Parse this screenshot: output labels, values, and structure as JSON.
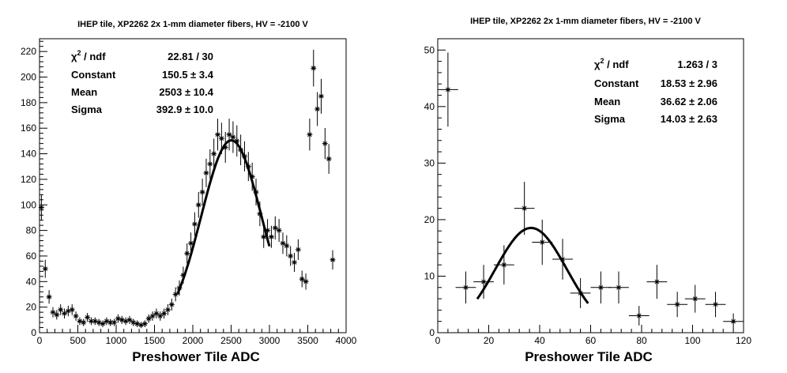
{
  "chart_data": [
    {
      "type": "scatter",
      "title": "IHEP tile, XP2262 2x 1-mm diameter fibers, HV = -2100 V",
      "xlabel": "Preshower Tile ADC",
      "ylabel": "",
      "xlim": [
        0,
        4000
      ],
      "ylim": [
        0,
        230
      ],
      "xticks": [
        "0",
        "500",
        "1000",
        "1500",
        "2000",
        "2500",
        "3000",
        "3500",
        "4000"
      ],
      "yticks": [
        "0",
        "20",
        "40",
        "60",
        "80",
        "100",
        "120",
        "140",
        "160",
        "180",
        "200",
        "220"
      ],
      "stats": [
        {
          "label": "χ² / ndf",
          "value": "22.81 / 30"
        },
        {
          "label": "Constant",
          "value": "150.5 ± 3.4"
        },
        {
          "label": "Mean",
          "value": "2503 ± 10.4"
        },
        {
          "label": "Sigma",
          "value": "392.9 ± 10.0"
        }
      ],
      "fit": {
        "constant": 150.5,
        "mean": 2503,
        "sigma": 392.9,
        "range": [
          1800,
          3000
        ]
      },
      "points": [
        [
          25,
          98
        ],
        [
          75,
          50
        ],
        [
          125,
          28
        ],
        [
          175,
          16
        ],
        [
          225,
          14
        ],
        [
          275,
          18
        ],
        [
          325,
          15
        ],
        [
          375,
          17
        ],
        [
          425,
          18
        ],
        [
          475,
          13
        ],
        [
          525,
          9
        ],
        [
          575,
          8
        ],
        [
          625,
          12
        ],
        [
          675,
          9
        ],
        [
          725,
          9
        ],
        [
          775,
          8
        ],
        [
          825,
          7
        ],
        [
          875,
          9
        ],
        [
          925,
          8
        ],
        [
          975,
          8
        ],
        [
          1025,
          11
        ],
        [
          1075,
          10
        ],
        [
          1125,
          9
        ],
        [
          1175,
          10
        ],
        [
          1225,
          8
        ],
        [
          1275,
          7
        ],
        [
          1325,
          6
        ],
        [
          1375,
          7
        ],
        [
          1425,
          11
        ],
        [
          1475,
          13
        ],
        [
          1525,
          15
        ],
        [
          1575,
          13
        ],
        [
          1625,
          15
        ],
        [
          1675,
          18
        ],
        [
          1725,
          22
        ],
        [
          1775,
          30
        ],
        [
          1825,
          35
        ],
        [
          1875,
          45
        ],
        [
          1925,
          62
        ],
        [
          1975,
          70
        ],
        [
          2025,
          85
        ],
        [
          2075,
          100
        ],
        [
          2125,
          110
        ],
        [
          2175,
          125
        ],
        [
          2225,
          132
        ],
        [
          2275,
          140
        ],
        [
          2325,
          155
        ],
        [
          2375,
          152
        ],
        [
          2425,
          145
        ],
        [
          2475,
          155
        ],
        [
          2525,
          153
        ],
        [
          2575,
          150
        ],
        [
          2625,
          143
        ],
        [
          2675,
          138
        ],
        [
          2725,
          130
        ],
        [
          2775,
          122
        ],
        [
          2825,
          110
        ],
        [
          2875,
          93
        ],
        [
          2925,
          75
        ],
        [
          2975,
          80
        ],
        [
          3025,
          75
        ],
        [
          3075,
          82
        ],
        [
          3125,
          80
        ],
        [
          3175,
          70
        ],
        [
          3225,
          68
        ],
        [
          3275,
          60
        ],
        [
          3325,
          55
        ],
        [
          3375,
          65
        ],
        [
          3425,
          42
        ],
        [
          3475,
          40
        ],
        [
          3525,
          155
        ],
        [
          3575,
          207
        ],
        [
          3625,
          175
        ],
        [
          3675,
          185
        ],
        [
          3725,
          148
        ],
        [
          3775,
          136
        ],
        [
          3825,
          57
        ]
      ]
    },
    {
      "type": "scatter",
      "title": "IHEP tile, XP2262 2x 1-mm diameter fibers, HV = -2100 V",
      "xlabel": "Preshower Tile ADC",
      "ylabel": "",
      "xlim": [
        0,
        120
      ],
      "ylim": [
        0,
        52
      ],
      "xticks": [
        "0",
        "20",
        "40",
        "60",
        "80",
        "100",
        "120"
      ],
      "yticks": [
        "0",
        "10",
        "20",
        "30",
        "40",
        "50"
      ],
      "stats": [
        {
          "label": "χ² / ndf",
          "value": "1.263 / 3"
        },
        {
          "label": "Constant",
          "value": "18.53 ± 2.96"
        },
        {
          "label": "Mean",
          "value": "36.62 ± 2.06"
        },
        {
          "label": "Sigma",
          "value": "14.03 ± 2.63"
        }
      ],
      "fit": {
        "constant": 18.53,
        "mean": 36.62,
        "sigma": 14.03,
        "range": [
          15.5,
          59
        ]
      },
      "points": [
        [
          4,
          43
        ],
        [
          11,
          8
        ],
        [
          18,
          9
        ],
        [
          26,
          12
        ],
        [
          34,
          22
        ],
        [
          41,
          16
        ],
        [
          49,
          13
        ],
        [
          56,
          7
        ],
        [
          64,
          8
        ],
        [
          71,
          8
        ],
        [
          79,
          3
        ],
        [
          86,
          9
        ],
        [
          94,
          5
        ],
        [
          101,
          6
        ],
        [
          109,
          5
        ],
        [
          116,
          2
        ]
      ]
    }
  ]
}
